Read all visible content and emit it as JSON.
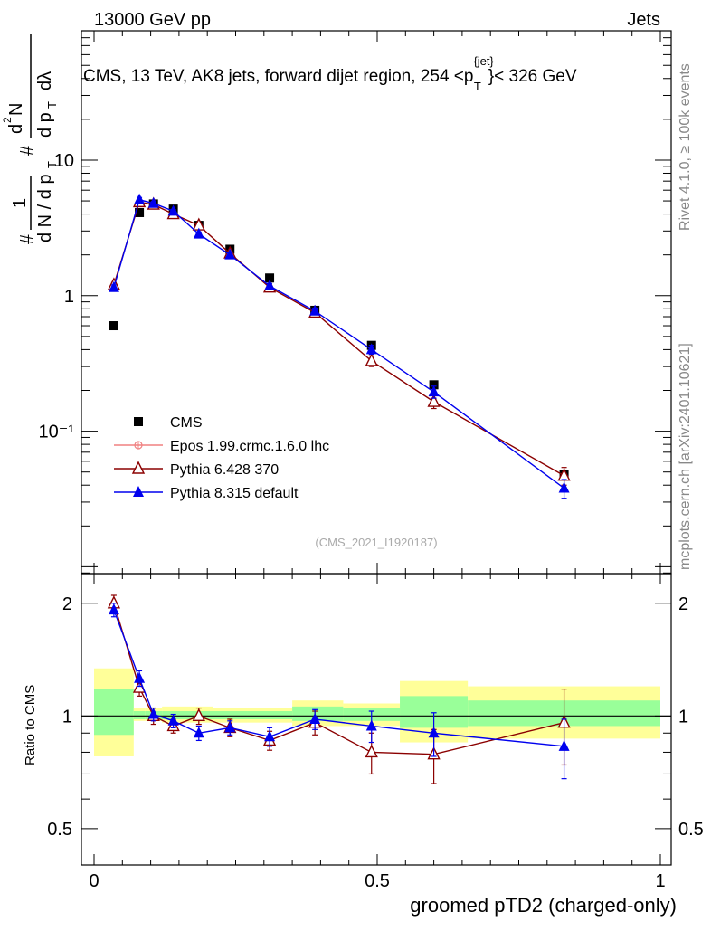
{
  "header": {
    "left": "13000 GeV pp",
    "right": "Jets",
    "title_main": "CMS, 13 TeV, AK8 jets, forward dijet region, 254 <p",
    "title_sup": "{jet}",
    "title_sub": "T",
    "title_end": "}< 326 GeV"
  },
  "side_labels": {
    "rivet": "Rivet 4.1.0, ≥ 100k events",
    "mcplots": "mcplots.cern.ch [arXiv:2401.10621]"
  },
  "watermark": "(CMS_2021_I1920187)",
  "y_axis_label": {
    "hash1": "#",
    "one": "1",
    "dN": "d N / d p",
    "T1": "T",
    "hash2": "#",
    "num2": "d",
    "sup2": "2",
    "N": "N",
    "dpT": "d p",
    "T2": "T",
    "dl": "dλ"
  },
  "ratio_ylabel": "Ratio to CMS",
  "x_axis_label": "groomed pTD2 (charged-only)",
  "legend": [
    {
      "label": "CMS",
      "marker": "square",
      "color": "#000000"
    },
    {
      "label": "Epos 1.99.crmc.1.6.0 lhc",
      "marker": "circle-cross",
      "color": "#f08080"
    },
    {
      "label": "Pythia 6.428 370",
      "marker": "triangle-open",
      "color": "#8b0000"
    },
    {
      "label": "Pythia 8.315 default",
      "marker": "triangle-filled",
      "color": "#0000ee"
    }
  ],
  "chart_data": {
    "type": "scatter",
    "x_axis": {
      "range": [
        0,
        1
      ],
      "ticks": [
        0,
        0.5,
        1
      ],
      "tick_labels": [
        "0",
        "0.5",
        "1"
      ]
    },
    "main_panel": {
      "yscale": "log",
      "ylim": [
        0.0089,
        90
      ],
      "y_ticks": [
        0.1,
        1,
        10
      ],
      "y_tick_labels": [
        "10⁻¹",
        "1",
        "10"
      ],
      "series": [
        {
          "name": "CMS",
          "color": "#000000",
          "marker": "square",
          "x": [
            0.035,
            0.08,
            0.105,
            0.14,
            0.185,
            0.24,
            0.31,
            0.39,
            0.49,
            0.6,
            0.83
          ],
          "y": [
            0.6,
            4.1,
            4.75,
            4.35,
            3.3,
            2.2,
            1.35,
            0.78,
            0.43,
            0.22,
            0.048
          ]
        },
        {
          "name": "Pythia 6.428 370",
          "color": "#8b0000",
          "marker": "triangle-open",
          "x": [
            0.035,
            0.08,
            0.105,
            0.14,
            0.185,
            0.24,
            0.31,
            0.39,
            0.49,
            0.6,
            0.83
          ],
          "y": [
            1.2,
            4.9,
            4.7,
            4.0,
            3.3,
            2.05,
            1.15,
            0.75,
            0.33,
            0.165,
            0.047
          ],
          "err": [
            0.05,
            0.15,
            0.15,
            0.12,
            0.1,
            0.07,
            0.05,
            0.04,
            0.03,
            0.018,
            0.007
          ]
        },
        {
          "name": "Pythia 8.315 default",
          "color": "#0000ee",
          "marker": "triangle-filled",
          "x": [
            0.035,
            0.08,
            0.105,
            0.14,
            0.185,
            0.24,
            0.31,
            0.39,
            0.49,
            0.6,
            0.83
          ],
          "y": [
            1.15,
            5.1,
            4.8,
            4.2,
            2.85,
            2.0,
            1.18,
            0.77,
            0.4,
            0.195,
            0.038
          ],
          "err": [
            0.05,
            0.2,
            0.15,
            0.12,
            0.1,
            0.07,
            0.05,
            0.04,
            0.03,
            0.02,
            0.006
          ]
        }
      ]
    },
    "ratio_panel": {
      "yscale": "log",
      "ylim": [
        0.4,
        2.4
      ],
      "y_ticks": [
        0.5,
        1,
        2
      ],
      "y_tick_labels": [
        "0.5",
        "1",
        "2"
      ],
      "reference_line": 1,
      "uncertainty_bands": {
        "edges": [
          0,
          0.07,
          0.09,
          0.12,
          0.16,
          0.21,
          0.27,
          0.35,
          0.44,
          0.54,
          0.66,
          1.0
        ],
        "yellow_lo": [
          0.78,
          0.97,
          0.97,
          0.96,
          0.96,
          0.96,
          0.96,
          0.94,
          0.94,
          0.85,
          0.87
        ],
        "yellow_hi": [
          1.34,
          1.05,
          1.05,
          1.06,
          1.06,
          1.05,
          1.05,
          1.1,
          1.08,
          1.24,
          1.2
        ],
        "green_lo": [
          0.89,
          0.98,
          0.98,
          0.98,
          0.98,
          0.98,
          0.98,
          0.97,
          0.97,
          0.93,
          0.94
        ],
        "green_hi": [
          1.18,
          1.03,
          1.03,
          1.03,
          1.03,
          1.03,
          1.03,
          1.06,
          1.05,
          1.13,
          1.1
        ]
      },
      "series": [
        {
          "name": "Pythia 6.428 370",
          "color": "#8b0000",
          "marker": "triangle-open",
          "x": [
            0.035,
            0.08,
            0.105,
            0.14,
            0.185,
            0.24,
            0.31,
            0.39,
            0.49,
            0.6,
            0.83
          ],
          "y": [
            2.0,
            1.19,
            1.0,
            0.94,
            1.0,
            0.93,
            0.86,
            0.96,
            0.8,
            0.79,
            0.96
          ],
          "err": [
            0.1,
            0.06,
            0.05,
            0.04,
            0.05,
            0.05,
            0.05,
            0.07,
            0.1,
            0.13,
            0.22
          ]
        },
        {
          "name": "Pythia 8.315 default",
          "color": "#0000ee",
          "marker": "triangle-filled",
          "x": [
            0.035,
            0.08,
            0.105,
            0.14,
            0.185,
            0.24,
            0.31,
            0.39,
            0.49,
            0.6,
            0.83
          ],
          "y": [
            1.92,
            1.26,
            1.01,
            0.97,
            0.9,
            0.93,
            0.88,
            0.98,
            0.94,
            0.9,
            0.83
          ],
          "err": [
            0.08,
            0.06,
            0.04,
            0.04,
            0.04,
            0.04,
            0.05,
            0.06,
            0.09,
            0.12,
            0.15
          ]
        }
      ]
    }
  }
}
